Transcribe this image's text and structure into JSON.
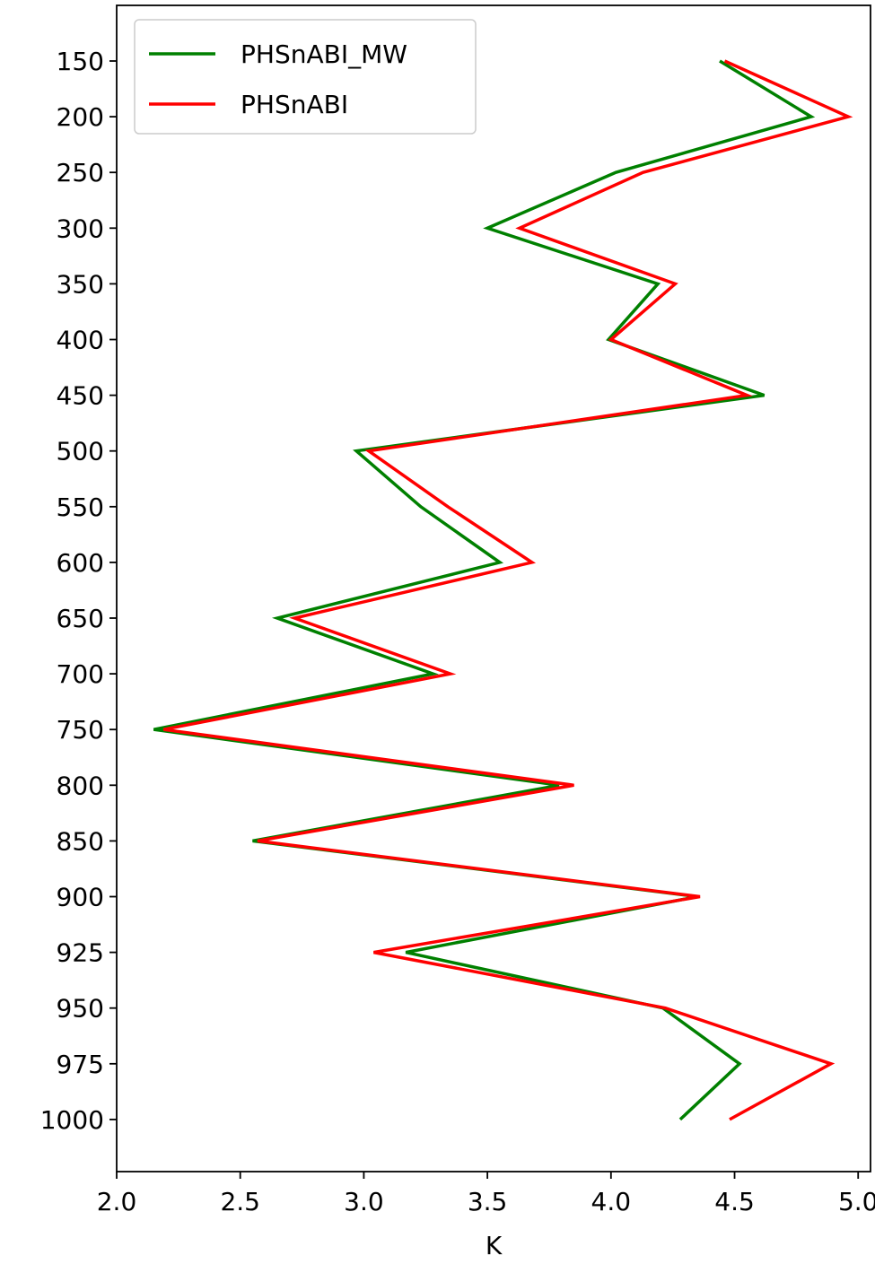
{
  "chart_data": {
    "type": "line",
    "title": "",
    "xlabel": "K",
    "ylabel": "",
    "xlim": [
      2.0,
      5.05
    ],
    "x_ticks": [
      "2.0",
      "2.5",
      "3.0",
      "3.5",
      "4.0",
      "4.5",
      "5.0"
    ],
    "y_categories": [
      "150",
      "200",
      "250",
      "300",
      "350",
      "400",
      "450",
      "500",
      "550",
      "600",
      "650",
      "700",
      "750",
      "800",
      "850",
      "900",
      "925",
      "950",
      "975",
      "1000"
    ],
    "y_inverted": true,
    "grid": false,
    "legend_position": "top-left",
    "series": [
      {
        "name": "PHSnABI_MW",
        "color": "#008000",
        "values": [
          4.44,
          4.81,
          4.02,
          3.5,
          4.19,
          3.99,
          4.62,
          2.97,
          3.23,
          3.55,
          2.65,
          3.28,
          2.15,
          3.79,
          2.55,
          4.35,
          3.17,
          4.21,
          4.52,
          4.28
        ]
      },
      {
        "name": "PHSnABI",
        "color": "#ff0000",
        "values": [
          4.46,
          4.96,
          4.13,
          3.63,
          4.26,
          4.0,
          4.55,
          3.02,
          3.34,
          3.68,
          2.72,
          3.35,
          2.19,
          3.85,
          2.57,
          4.36,
          3.04,
          4.22,
          4.89,
          4.48
        ]
      }
    ]
  }
}
